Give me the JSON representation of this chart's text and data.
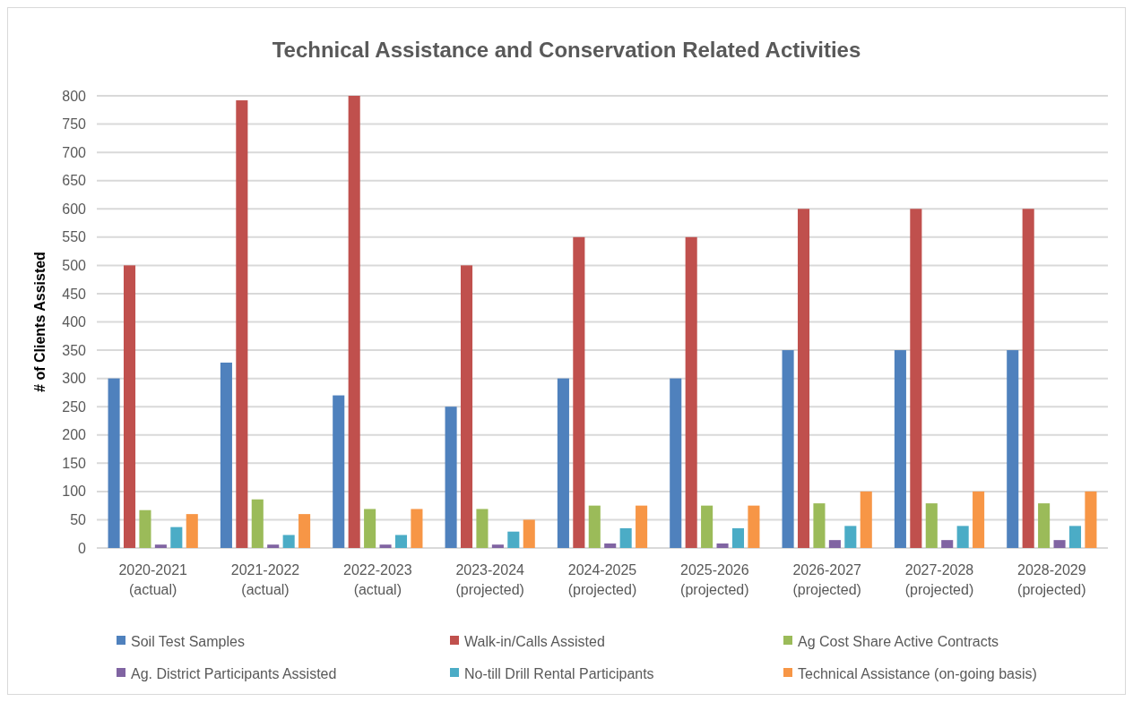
{
  "chart_data": {
    "type": "bar",
    "title": "Technical Assistance and Conservation Related Activities",
    "ylabel": "# of Clients Assisted",
    "categories": [
      "2020-2021\n(actual)",
      "2021-2022\n(actual)",
      "2022-2023\n(actual)",
      "2023-2024\n(projected)",
      "2024-2025\n(projected)",
      "2025-2026\n(projected)",
      "2026-2027\n(projected)",
      "2027-2028\n(projected)",
      "2028-2029\n(projected)"
    ],
    "series": [
      {
        "name": "Soil Test Samples",
        "color": "#4f81bd",
        "values": [
          300,
          328,
          270,
          250,
          300,
          300,
          350,
          350,
          350
        ]
      },
      {
        "name": "Walk-in/Calls Assisted",
        "color": "#c0504d",
        "values": [
          500,
          792,
          800,
          500,
          550,
          550,
          600,
          600,
          600
        ]
      },
      {
        "name": "Ag Cost Share Active Contracts",
        "color": "#9bbb59",
        "values": [
          67,
          86,
          69,
          69,
          75,
          75,
          79,
          79,
          79
        ]
      },
      {
        "name": "Ag. District Participants Assisted",
        "color": "#8064a2",
        "values": [
          6,
          6,
          6,
          6,
          8,
          8,
          14,
          14,
          14
        ]
      },
      {
        "name": "No-till Drill Rental Participants",
        "color": "#4bacc6",
        "values": [
          37,
          23,
          23,
          29,
          35,
          35,
          39,
          39,
          39
        ]
      },
      {
        "name": "Technical Assistance (on-going basis)",
        "color": "#f79646",
        "values": [
          60,
          60,
          69,
          50,
          75,
          75,
          100,
          100,
          100
        ]
      }
    ],
    "ylim": [
      0,
      800
    ],
    "yticks": [
      0,
      50,
      100,
      150,
      200,
      250,
      300,
      350,
      400,
      450,
      500,
      550,
      600,
      650,
      700,
      750,
      800
    ],
    "grid": "y",
    "legend": "bottom"
  }
}
